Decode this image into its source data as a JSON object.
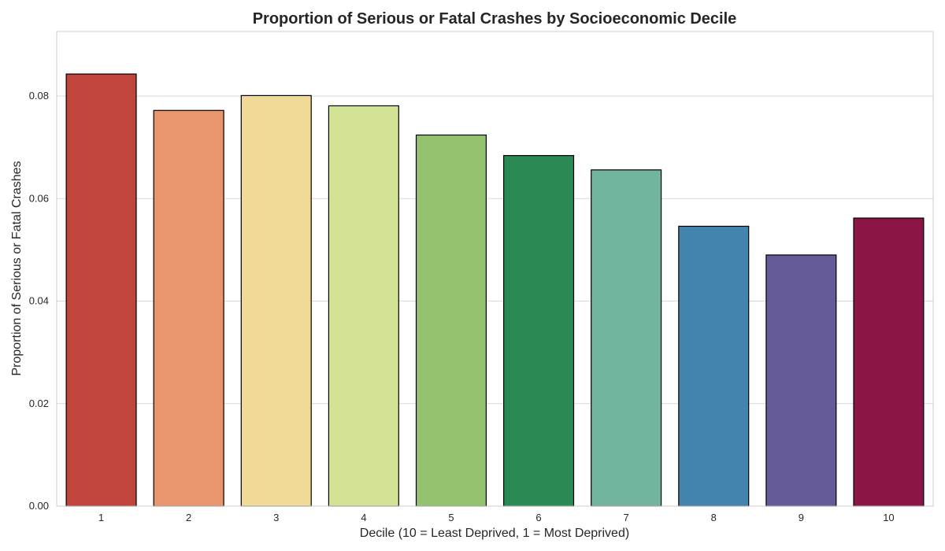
{
  "chart_data": {
    "type": "bar",
    "title": "Proportion of Serious or Fatal Crashes by Socioeconomic Decile",
    "xlabel": "Decile (10 = Least Deprived, 1 = Most Deprived)",
    "ylabel": "Proportion of Serious or Fatal Crashes",
    "categories": [
      "1",
      "2",
      "3",
      "4",
      "5",
      "6",
      "7",
      "8",
      "9",
      "10"
    ],
    "values": [
      0.0843,
      0.0772,
      0.0801,
      0.0781,
      0.0724,
      0.0684,
      0.0656,
      0.0546,
      0.049,
      0.0562
    ],
    "colors": [
      "#c2453d",
      "#e9956d",
      "#f0da97",
      "#d3e396",
      "#95c26f",
      "#2b8a53",
      "#73b49f",
      "#4384ae",
      "#655b98",
      "#8b1545"
    ],
    "ylim": [
      0,
      0.0926
    ],
    "yticks": [
      "0.00",
      "0.02",
      "0.04",
      "0.06",
      "0.08"
    ],
    "grid": "horizontal",
    "legend": "none"
  }
}
